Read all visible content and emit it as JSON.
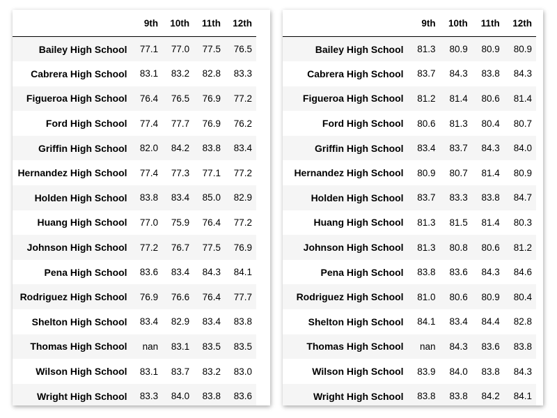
{
  "columns": [
    "9th",
    "10th",
    "11th",
    "12th"
  ],
  "left_table": {
    "rows": [
      {
        "school": "Bailey High School",
        "values": [
          "77.1",
          "77.0",
          "77.5",
          "76.5"
        ]
      },
      {
        "school": "Cabrera High School",
        "values": [
          "83.1",
          "83.2",
          "82.8",
          "83.3"
        ]
      },
      {
        "school": "Figueroa High School",
        "values": [
          "76.4",
          "76.5",
          "76.9",
          "77.2"
        ]
      },
      {
        "school": "Ford High School",
        "values": [
          "77.4",
          "77.7",
          "76.9",
          "76.2"
        ]
      },
      {
        "school": "Griffin High School",
        "values": [
          "82.0",
          "84.2",
          "83.8",
          "83.4"
        ]
      },
      {
        "school": "Hernandez High School",
        "values": [
          "77.4",
          "77.3",
          "77.1",
          "77.2"
        ]
      },
      {
        "school": "Holden High School",
        "values": [
          "83.8",
          "83.4",
          "85.0",
          "82.9"
        ]
      },
      {
        "school": "Huang High School",
        "values": [
          "77.0",
          "75.9",
          "76.4",
          "77.2"
        ]
      },
      {
        "school": "Johnson High School",
        "values": [
          "77.2",
          "76.7",
          "77.5",
          "76.9"
        ]
      },
      {
        "school": "Pena High School",
        "values": [
          "83.6",
          "83.4",
          "84.3",
          "84.1"
        ]
      },
      {
        "school": "Rodriguez High School",
        "values": [
          "76.9",
          "76.6",
          "76.4",
          "77.7"
        ]
      },
      {
        "school": "Shelton High School",
        "values": [
          "83.4",
          "82.9",
          "83.4",
          "83.8"
        ]
      },
      {
        "school": "Thomas High School",
        "values": [
          "nan",
          "83.1",
          "83.5",
          "83.5"
        ]
      },
      {
        "school": "Wilson High School",
        "values": [
          "83.1",
          "83.7",
          "83.2",
          "83.0"
        ]
      },
      {
        "school": "Wright High School",
        "values": [
          "83.3",
          "84.0",
          "83.8",
          "83.6"
        ]
      }
    ]
  },
  "right_table": {
    "rows": [
      {
        "school": "Bailey High School",
        "values": [
          "81.3",
          "80.9",
          "80.9",
          "80.9"
        ]
      },
      {
        "school": "Cabrera High School",
        "values": [
          "83.7",
          "84.3",
          "83.8",
          "84.3"
        ]
      },
      {
        "school": "Figueroa High School",
        "values": [
          "81.2",
          "81.4",
          "80.6",
          "81.4"
        ]
      },
      {
        "school": "Ford High School",
        "values": [
          "80.6",
          "81.3",
          "80.4",
          "80.7"
        ]
      },
      {
        "school": "Griffin High School",
        "values": [
          "83.4",
          "83.7",
          "84.3",
          "84.0"
        ]
      },
      {
        "school": "Hernandez High School",
        "values": [
          "80.9",
          "80.7",
          "81.4",
          "80.9"
        ]
      },
      {
        "school": "Holden High School",
        "values": [
          "83.7",
          "83.3",
          "83.8",
          "84.7"
        ]
      },
      {
        "school": "Huang High School",
        "values": [
          "81.3",
          "81.5",
          "81.4",
          "80.3"
        ]
      },
      {
        "school": "Johnson High School",
        "values": [
          "81.3",
          "80.8",
          "80.6",
          "81.2"
        ]
      },
      {
        "school": "Pena High School",
        "values": [
          "83.8",
          "83.6",
          "84.3",
          "84.6"
        ]
      },
      {
        "school": "Rodriguez High School",
        "values": [
          "81.0",
          "80.6",
          "80.9",
          "80.4"
        ]
      },
      {
        "school": "Shelton High School",
        "values": [
          "84.1",
          "83.4",
          "84.4",
          "82.8"
        ]
      },
      {
        "school": "Thomas High School",
        "values": [
          "nan",
          "84.3",
          "83.6",
          "83.8"
        ]
      },
      {
        "school": "Wilson High School",
        "values": [
          "83.9",
          "84.0",
          "83.8",
          "84.3"
        ]
      },
      {
        "school": "Wright High School",
        "values": [
          "83.8",
          "83.8",
          "84.2",
          "84.1"
        ]
      }
    ]
  }
}
